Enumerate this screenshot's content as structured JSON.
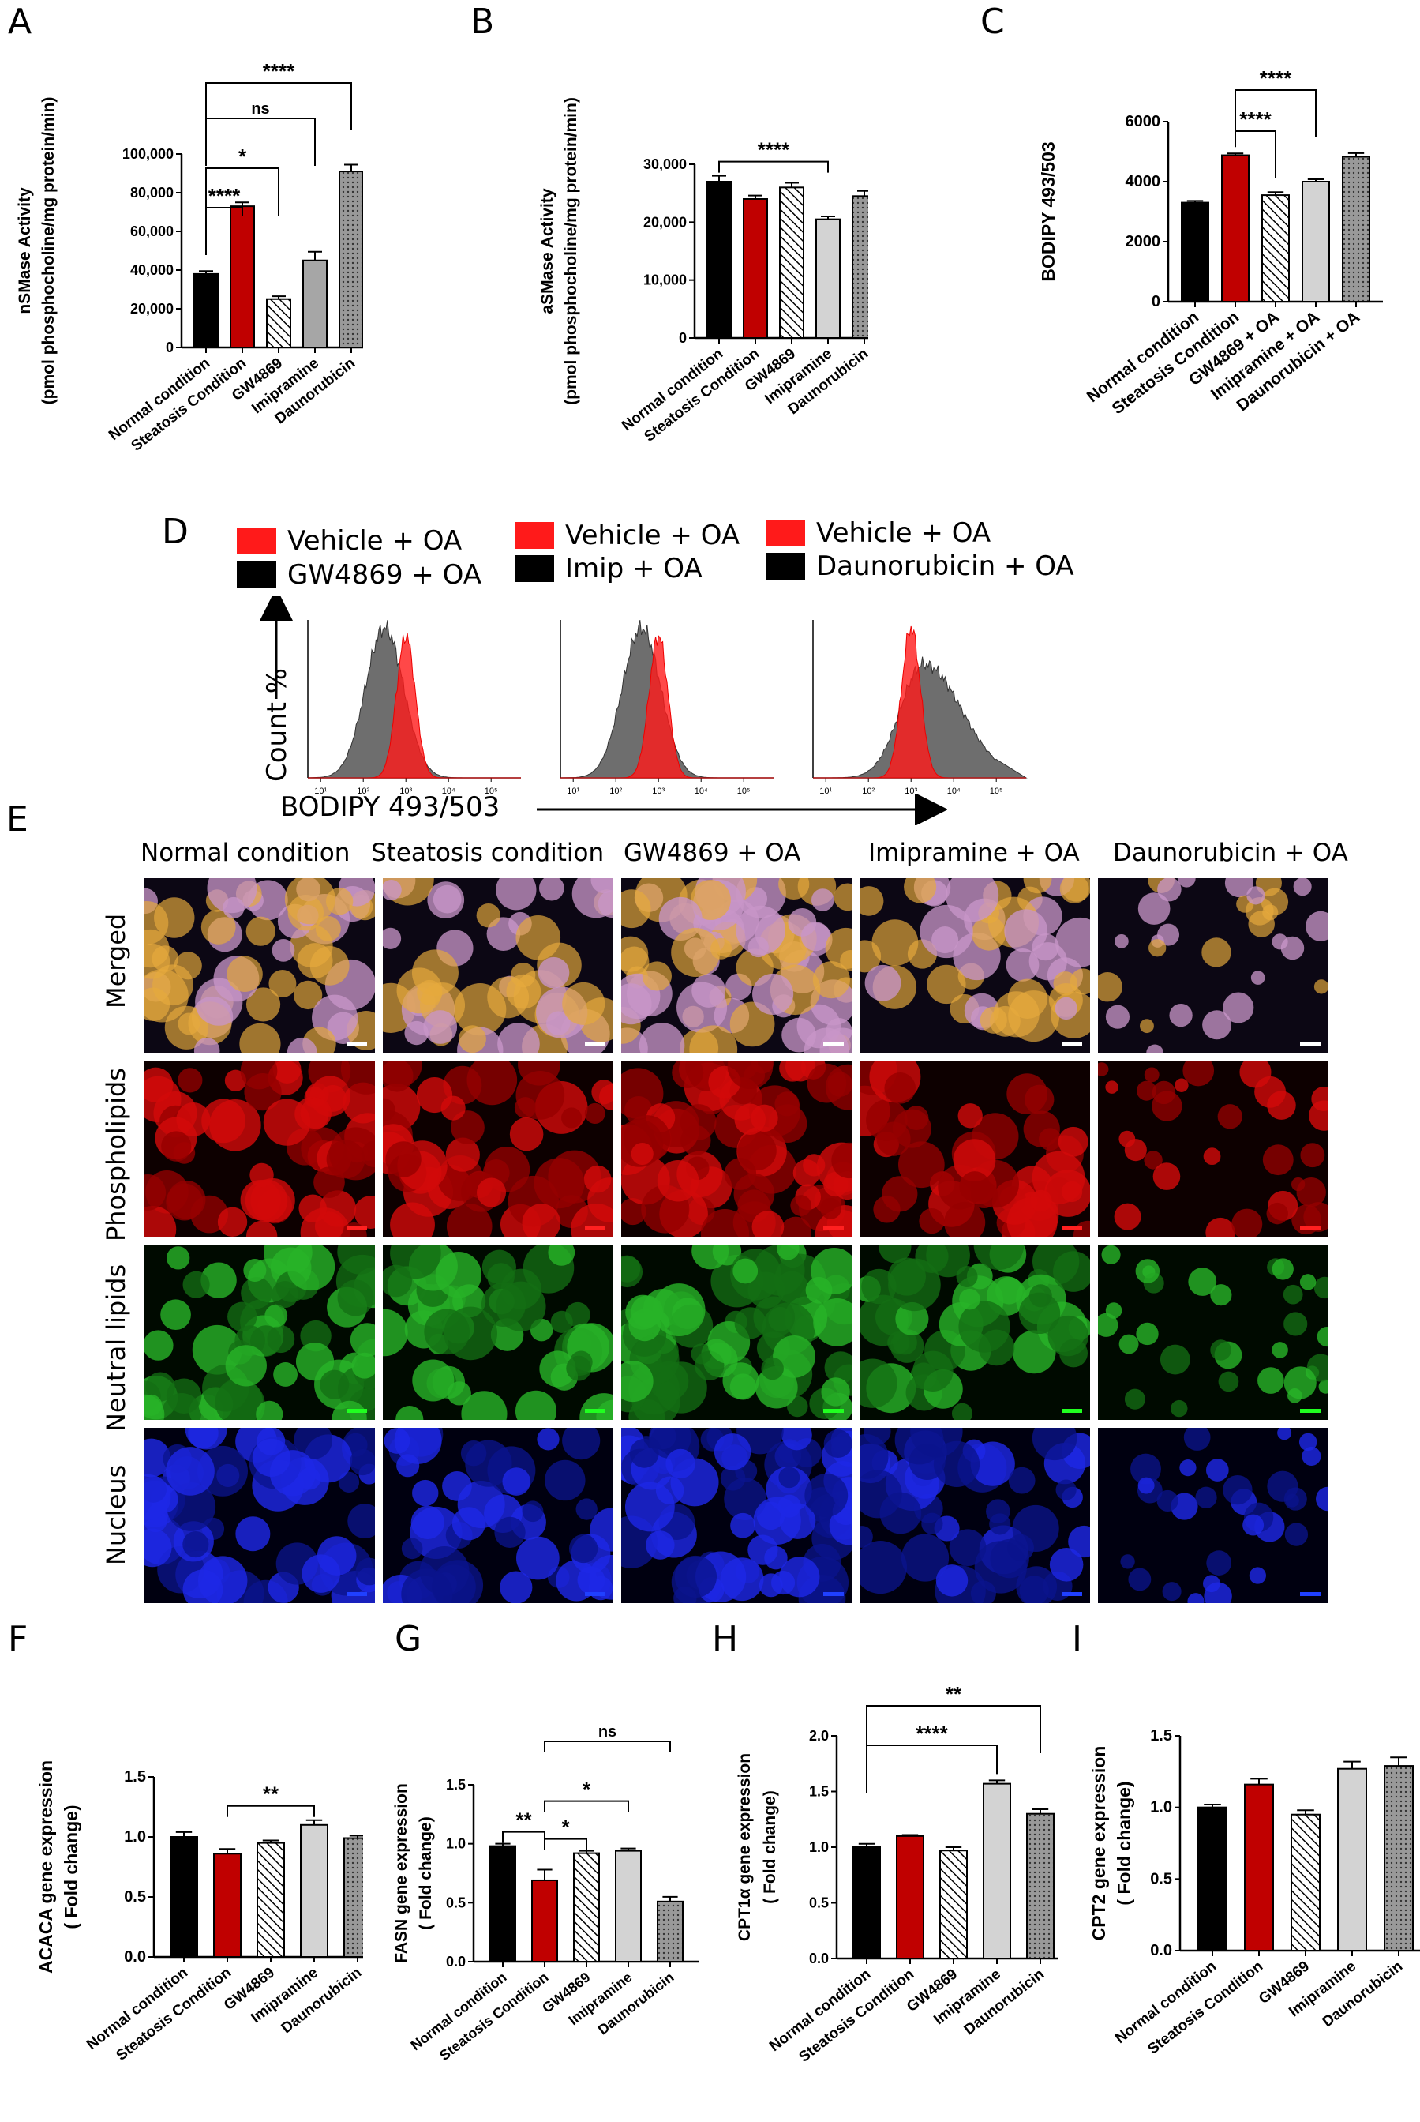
{
  "panels": {
    "A": {
      "label": "A"
    },
    "B": {
      "label": "B"
    },
    "C": {
      "label": "C"
    },
    "D": {
      "label": "D"
    },
    "E": {
      "label": "E"
    },
    "F": {
      "label": "F"
    },
    "G": {
      "label": "G"
    },
    "H": {
      "label": "H"
    },
    "I": {
      "label": "I"
    }
  },
  "colors": {
    "normal": "#000000",
    "steatosis": "#c00000",
    "imipramine": "#d3d3d3",
    "imipramine_dark": "#a6a6a6",
    "dauno": "#888888",
    "vehicle": "#ff1a1a",
    "treat_hist": "#555555"
  },
  "chart_data": [
    {
      "id": "A",
      "type": "bar",
      "ylabel": "nSMase Activity",
      "ylabel2": "(pmol phosphocholine/mg protein/min)",
      "categories": [
        "Normal condition",
        "Steatosis Condition",
        "GW4869",
        "Imipramine",
        "Daunorubicin"
      ],
      "values": [
        38000,
        73000,
        25000,
        45000,
        91000
      ],
      "errors": [
        1500,
        2000,
        1500,
        4500,
        3500
      ],
      "ylim": [
        0,
        100000
      ],
      "yticks": [
        0,
        20000,
        40000,
        60000,
        80000,
        100000
      ],
      "ytick_labels": [
        "0",
        "20,000",
        "40,000",
        "60,000",
        "80,000",
        "100,000"
      ],
      "fills": [
        "black",
        "red",
        "hatch",
        "gray",
        "dots"
      ],
      "significance": [
        {
          "from": 0,
          "to": 1,
          "label": "****"
        },
        {
          "from": 0,
          "to": 2,
          "label": "*"
        },
        {
          "from": 0,
          "to": 3,
          "label": "ns"
        },
        {
          "from": 0,
          "to": 4,
          "label": "****"
        }
      ]
    },
    {
      "id": "B",
      "type": "bar",
      "ylabel": "aSMase Activity",
      "ylabel2": "(pmol phosphocholine/mg protein/min)",
      "categories": [
        "Normal condition",
        "Steatosis Condition",
        "GW4869",
        "Imipramine",
        "Daunorubicin"
      ],
      "values": [
        27000,
        24000,
        26000,
        20500,
        24500
      ],
      "errors": [
        1000,
        600,
        800,
        500,
        900
      ],
      "ylim": [
        0,
        30000
      ],
      "yticks": [
        0,
        10000,
        20000,
        30000
      ],
      "ytick_labels": [
        "0",
        "10,000",
        "20,000",
        "30,000"
      ],
      "fills": [
        "black",
        "red",
        "hatch",
        "lightgray",
        "dots"
      ],
      "significance": [
        {
          "from": 0,
          "to": 3,
          "label": "****"
        }
      ]
    },
    {
      "id": "C",
      "type": "bar",
      "ylabel": "BODIPY 493/503",
      "ylabel2": "",
      "categories": [
        "Normal condition",
        "Steatosis Condition",
        "GW4869 + OA",
        "Imipramine + OA",
        "Daunorubicin + OA"
      ],
      "values": [
        3300,
        4880,
        3550,
        4000,
        4830
      ],
      "errors": [
        60,
        60,
        100,
        80,
        120
      ],
      "ylim": [
        0,
        6000
      ],
      "yticks": [
        0,
        2000,
        4000,
        6000
      ],
      "ytick_labels": [
        "0",
        "2000",
        "4000",
        "6000"
      ],
      "fills": [
        "black",
        "red",
        "hatch",
        "lightgray",
        "dots"
      ],
      "significance": [
        {
          "from": 1,
          "to": 2,
          "label": "****"
        },
        {
          "from": 1,
          "to": 3,
          "label": "****"
        }
      ]
    },
    {
      "id": "F",
      "type": "bar",
      "ylabel": "ACACA gene expression",
      "ylabel2": "( Fold change)",
      "categories": [
        "Normal condition",
        "Steatosis Condition",
        "GW4869",
        "Imipramine",
        "Daunorubicin"
      ],
      "values": [
        1.0,
        0.86,
        0.95,
        1.1,
        0.99
      ],
      "errors": [
        0.04,
        0.04,
        0.02,
        0.04,
        0.02
      ],
      "ylim": [
        0,
        1.5
      ],
      "yticks": [
        0,
        0.5,
        1.0,
        1.5
      ],
      "ytick_labels": [
        "0.0",
        "0.5",
        "1.0",
        "1.5"
      ],
      "fills": [
        "black",
        "red",
        "hatch",
        "lightgray",
        "dots"
      ],
      "significance": [
        {
          "from": 1,
          "to": 3,
          "label": "**"
        }
      ]
    },
    {
      "id": "G",
      "type": "bar",
      "ylabel": "FASN gene expression",
      "ylabel2": "( Fold change)",
      "categories": [
        "Normal condition",
        "Steatosis Condition",
        "GW4869",
        "Imipramine",
        "Daunorubicin"
      ],
      "values": [
        0.98,
        0.69,
        0.92,
        0.94,
        0.51
      ],
      "errors": [
        0.02,
        0.09,
        0.02,
        0.02,
        0.04
      ],
      "ylim": [
        0,
        1.5
      ],
      "yticks": [
        0,
        0.5,
        1.0,
        1.5
      ],
      "ytick_labels": [
        "0.0",
        "0.5",
        "1.0",
        "1.5"
      ],
      "fills": [
        "black",
        "red",
        "hatch",
        "lightgray",
        "dots"
      ],
      "significance": [
        {
          "from": 0,
          "to": 1,
          "label": "**"
        },
        {
          "from": 1,
          "to": 2,
          "label": "*"
        },
        {
          "from": 1,
          "to": 3,
          "label": "*"
        },
        {
          "from": 1,
          "to": 4,
          "label": "ns"
        }
      ]
    },
    {
      "id": "H",
      "type": "bar",
      "ylabel": "CPT1α gene expression",
      "ylabel2": "( Fold change)",
      "categories": [
        "Normal condition",
        "Steatosis Condition",
        "GW4869",
        "Imipramine",
        "Daunorubicin"
      ],
      "values": [
        1.0,
        1.1,
        0.97,
        1.57,
        1.3
      ],
      "errors": [
        0.03,
        0.01,
        0.03,
        0.03,
        0.04
      ],
      "ylim": [
        0,
        2.0
      ],
      "yticks": [
        0,
        0.5,
        1.0,
        1.5,
        2.0
      ],
      "ytick_labels": [
        "0.0",
        "0.5",
        "1.0",
        "1.5",
        "2.0"
      ],
      "fills": [
        "black",
        "red",
        "hatch",
        "lightgray",
        "dots"
      ],
      "significance": [
        {
          "from": 0,
          "to": 3,
          "label": "****"
        },
        {
          "from": 0,
          "to": 4,
          "label": "**"
        }
      ]
    },
    {
      "id": "I",
      "type": "bar",
      "ylabel": "CPT2 gene expression",
      "ylabel2": "( Fold change)",
      "categories": [
        "Normal condition",
        "Steatosis Condition",
        "GW4869",
        "Imipramine",
        "Daunorubicin"
      ],
      "values": [
        1.0,
        1.16,
        0.95,
        1.27,
        1.29
      ],
      "errors": [
        0.02,
        0.04,
        0.03,
        0.05,
        0.06
      ],
      "ylim": [
        0,
        1.5
      ],
      "yticks": [
        0,
        0.5,
        1.0,
        1.5
      ],
      "ytick_labels": [
        "0.0",
        "0.5",
        "1.0",
        "1.5"
      ],
      "fills": [
        "black",
        "red",
        "hatch",
        "lightgray",
        "dots"
      ],
      "significance": []
    }
  ],
  "flow": {
    "legends": [
      {
        "vehicle": "Vehicle + OA",
        "treat": "GW4869 + OA"
      },
      {
        "vehicle": "Vehicle + OA",
        "treat": "Imip + OA"
      },
      {
        "vehicle": "Vehicle + OA",
        "treat": "Daunorubicin + OA"
      }
    ],
    "ylabel": "Count %",
    "xlabel": "BODIPY 493/503",
    "tick_labels": [
      "10¹",
      "10²",
      "10³",
      "10⁴",
      "10⁵"
    ],
    "histograms": [
      {
        "vehicle_peak": 3.0,
        "treat_peak": 2.5,
        "treat_shift": "left"
      },
      {
        "vehicle_peak": 3.0,
        "treat_peak": 2.6,
        "treat_shift": "left"
      },
      {
        "vehicle_peak": 3.0,
        "treat_peak": 3.3,
        "treat_shift": "right"
      }
    ]
  },
  "microscopy": {
    "columns": [
      "Normal condition",
      "Steatosis condition",
      "GW4869 + OA",
      "Imipramine + OA",
      "Daunorubicin +  OA"
    ],
    "rows": [
      {
        "label": "Merged",
        "tone": "merged"
      },
      {
        "label": "Phospholipids",
        "tone": "red"
      },
      {
        "label": "Neutral lipids",
        "tone": "green"
      },
      {
        "label": "Nucleus",
        "tone": "blue"
      }
    ]
  }
}
